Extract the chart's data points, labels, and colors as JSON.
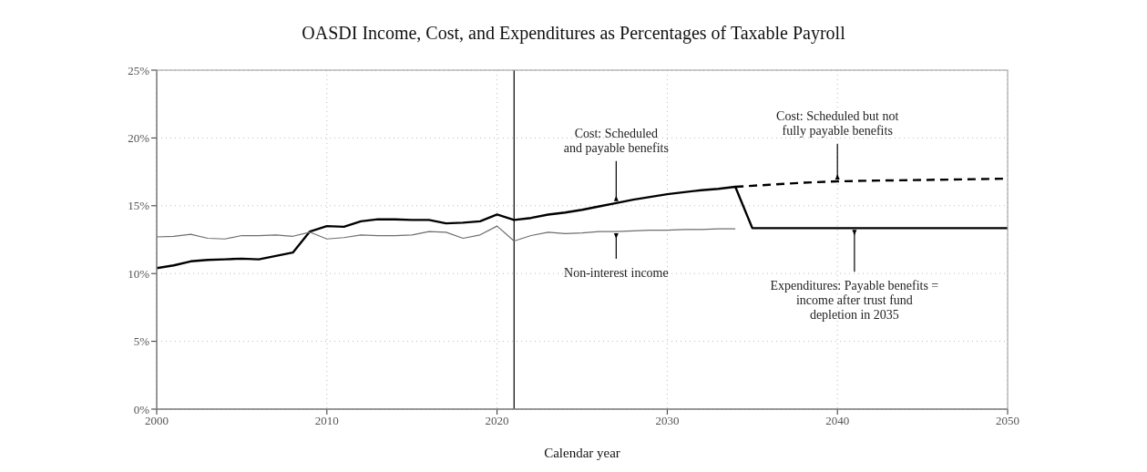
{
  "chart_data": {
    "type": "line",
    "title": "OASDI Income, Cost, and Expenditures as Percentages of Taxable Payroll",
    "xlabel": "Calendar year",
    "xlim": [
      2000,
      2050
    ],
    "xticks": [
      2000,
      2010,
      2020,
      2030,
      2040,
      2050
    ],
    "ylim": [
      0,
      25
    ],
    "yticks": [
      {
        "value": 0,
        "label": "0%"
      },
      {
        "value": 5,
        "label": "5%"
      },
      {
        "value": 10,
        "label": "10%"
      },
      {
        "value": 15,
        "label": "15%"
      },
      {
        "value": 20,
        "label": "20%"
      },
      {
        "value": 25,
        "label": "25%"
      }
    ],
    "grid": true,
    "marker": "none",
    "series": [
      {
        "color": "#000000",
        "line_style": "solid",
        "x": [
          2000,
          2001,
          2002,
          2003,
          2004,
          2005,
          2006,
          2007,
          2008,
          2009,
          2010,
          2011,
          2012,
          2013,
          2014,
          2015,
          2016,
          2017,
          2018,
          2019,
          2020,
          2021,
          2022,
          2023,
          2024,
          2025,
          2026,
          2027,
          2028,
          2029,
          2030,
          2031,
          2032,
          2033,
          2034,
          2035,
          2050
        ],
        "values": [
          10.4,
          10.6,
          10.9,
          11.0,
          11.05,
          11.1,
          11.05,
          11.3,
          11.55,
          13.1,
          13.5,
          13.45,
          13.85,
          14.0,
          14.0,
          13.95,
          13.95,
          13.7,
          13.75,
          13.85,
          14.35,
          13.95,
          14.1,
          14.35,
          14.5,
          14.7,
          14.95,
          15.2,
          15.45,
          15.65,
          15.85,
          16.0,
          16.15,
          16.25,
          16.4,
          13.35,
          13.35
        ]
      },
      {
        "color": "#6e6e6e",
        "line_style": "solid",
        "x": [
          2000,
          2001,
          2002,
          2003,
          2004,
          2005,
          2006,
          2007,
          2008,
          2009,
          2010,
          2011,
          2012,
          2013,
          2014,
          2015,
          2016,
          2017,
          2018,
          2019,
          2020,
          2021,
          2022,
          2023,
          2024,
          2025,
          2026,
          2027,
          2028,
          2029,
          2030,
          2031,
          2032,
          2033,
          2034
        ],
        "values": [
          12.7,
          12.75,
          12.9,
          12.6,
          12.55,
          12.8,
          12.8,
          12.85,
          12.75,
          13.05,
          12.55,
          12.65,
          12.85,
          12.8,
          12.8,
          12.85,
          13.1,
          13.05,
          12.6,
          12.85,
          13.5,
          12.4,
          12.8,
          13.05,
          12.95,
          13.0,
          13.1,
          13.1,
          13.15,
          13.2,
          13.2,
          13.25,
          13.25,
          13.3,
          13.3
        ]
      },
      {
        "color": "#000000",
        "line_style": "dashed",
        "x": [
          2034,
          2036,
          2038,
          2040,
          2042,
          2045,
          2050
        ],
        "values": [
          16.4,
          16.55,
          16.7,
          16.8,
          16.85,
          16.9,
          17.0
        ]
      }
    ],
    "ref_lines": [
      {
        "axis": "x",
        "value": 2021,
        "color": "#000000"
      }
    ],
    "annotations": [
      {
        "text": "Cost: Scheduled\nand payable benefits",
        "x": 2027,
        "y": 15.2
      },
      {
        "text": "Cost: Scheduled but not\nfully payable benefits",
        "x": 2040,
        "y": 16.8
      },
      {
        "text": "Non-interest income",
        "x": 2027,
        "y": 13.1
      },
      {
        "text": "Expenditures: Payable benefits =\nincome after trust fund\ndepletion in 2035",
        "x": 2041,
        "y": 13.35
      }
    ]
  }
}
